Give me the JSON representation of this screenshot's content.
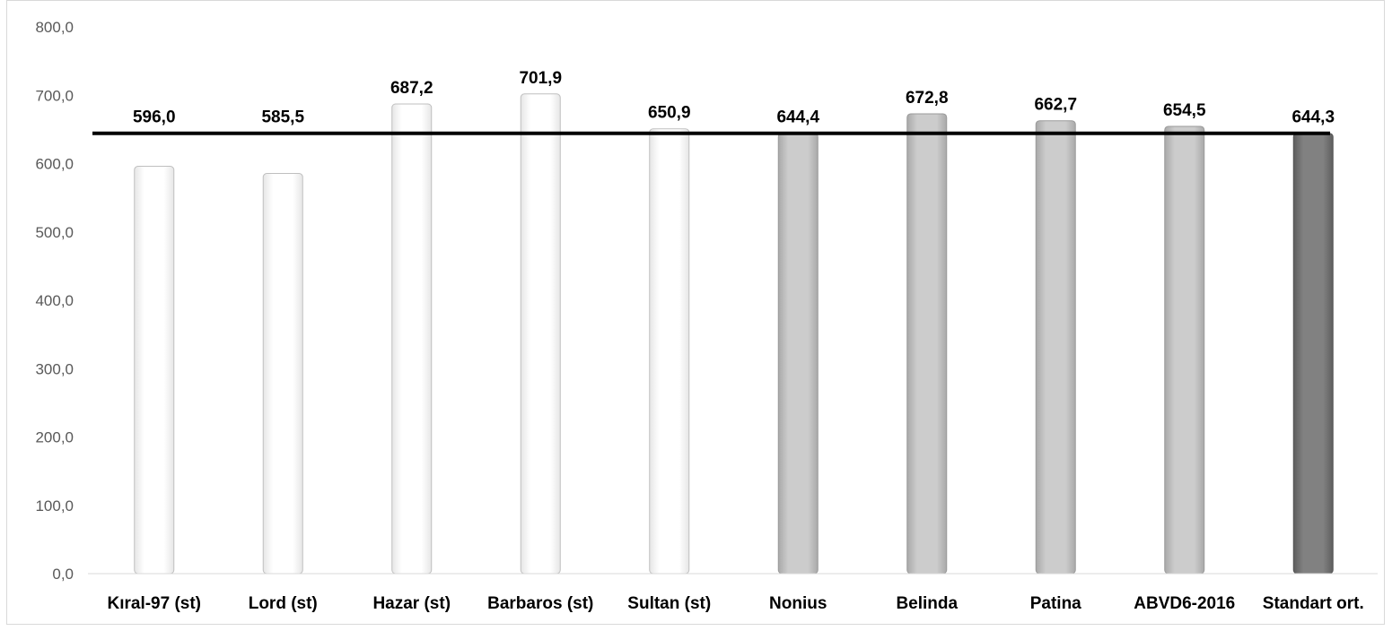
{
  "chart_data": {
    "type": "bar",
    "categories": [
      "Kıral-97 (st)",
      "Lord (st)",
      "Hazar (st)",
      "Barbaros (st)",
      "Sultan (st)",
      "Nonius",
      "Belinda",
      "Patina",
      "ABVD6-2016",
      "Standart ort."
    ],
    "values": [
      596.0,
      585.5,
      687.2,
      701.9,
      650.9,
      644.4,
      672.8,
      662.7,
      654.5,
      644.3
    ],
    "value_labels": [
      "596,0",
      "585,5",
      "687,2",
      "701,9",
      "650,9",
      "644,4",
      "672,8",
      "662,7",
      "654,5",
      "644,3"
    ],
    "bar_groups": [
      "standard",
      "standard",
      "standard",
      "standard",
      "standard",
      "new",
      "new",
      "new",
      "new",
      "average"
    ],
    "group_colors": {
      "standard": "#ffffff",
      "new": "#c8c8c8",
      "average": "#808080"
    },
    "reference_line": 644.3,
    "reference_line_color": "#000000",
    "ylim": [
      0,
      800
    ],
    "yticks": [
      0,
      100,
      200,
      300,
      400,
      500,
      600,
      700,
      800
    ],
    "ytick_labels": [
      "0,0",
      "100,0",
      "200,0",
      "300,0",
      "400,0",
      "500,0",
      "600,0",
      "700,0",
      "800,0"
    ],
    "grid": false,
    "title": "",
    "xlabel": "",
    "ylabel": ""
  }
}
